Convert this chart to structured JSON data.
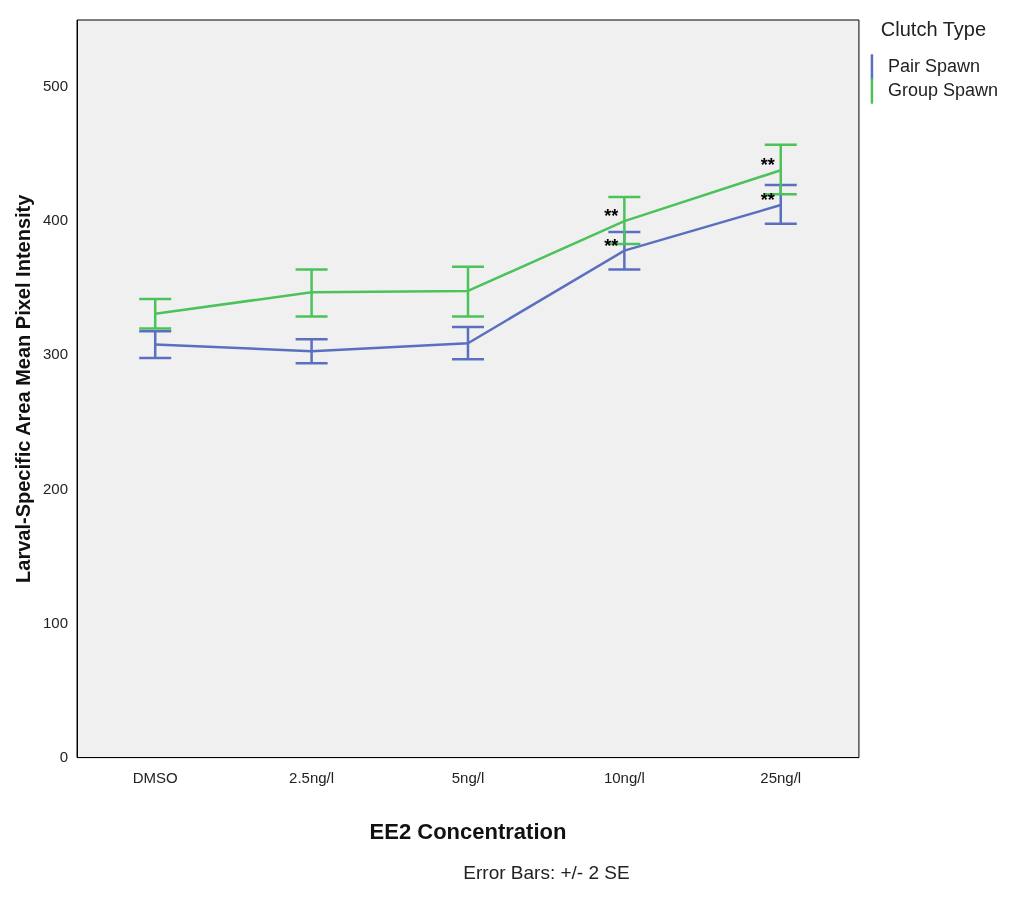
{
  "chart_data": {
    "type": "line",
    "xlabel": "EE2 Concentration",
    "ylabel": "Larval-Specific Area Mean Pixel Intensity",
    "legend_title": "Clutch Type",
    "categories": [
      "DMSO",
      "2.5ng/l",
      "5ng/l",
      "10ng/l",
      "25ng/l"
    ],
    "series": [
      {
        "name": "Pair Spawn",
        "color": "#5b6fc0",
        "values": [
          308,
          303,
          309,
          378,
          412
        ],
        "errors": [
          [
            298,
            318
          ],
          [
            294,
            312
          ],
          [
            297,
            321
          ],
          [
            364,
            392
          ],
          [
            398,
            427
          ]
        ]
      },
      {
        "name": "Group Spawn",
        "color": "#4cc25a",
        "values": [
          331,
          347,
          348,
          400,
          438
        ],
        "errors": [
          [
            320,
            342
          ],
          [
            329,
            364
          ],
          [
            329,
            366
          ],
          [
            383,
            418
          ],
          [
            420,
            457
          ]
        ]
      }
    ],
    "ylim": [
      0,
      550
    ],
    "yticks": [
      0,
      100,
      200,
      300,
      400,
      500
    ],
    "grid": false,
    "legend": "top right",
    "marker": "none",
    "line_style": "solid",
    "annotations": [
      {
        "text": "**",
        "x": "10ng/l",
        "y": 400
      },
      {
        "text": "**",
        "x": "10ng/l",
        "y": 378
      },
      {
        "text": "**",
        "x": "25ng/l",
        "y": 438
      },
      {
        "text": "**",
        "x": "25ng/l",
        "y": 412
      },
      "Error Bars: +/- 2 SE"
    ]
  }
}
